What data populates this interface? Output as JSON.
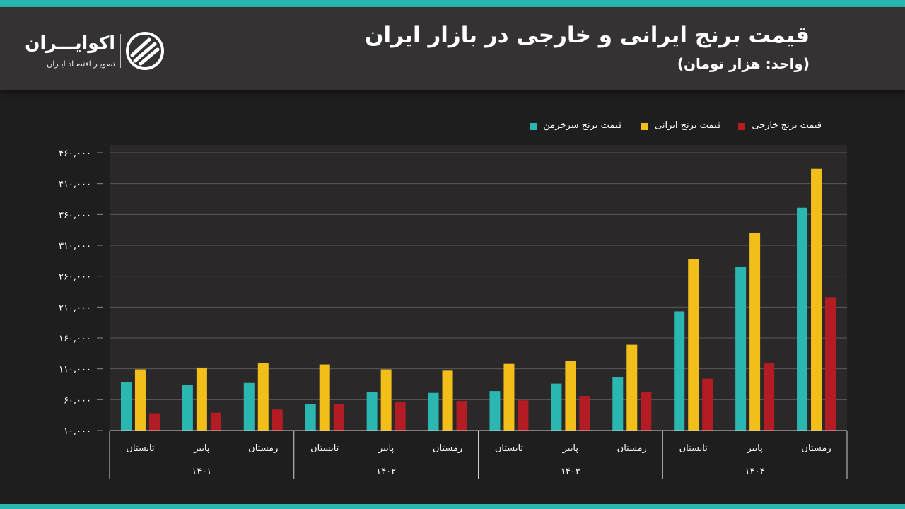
{
  "header": {
    "title": "قیمت برنج ایرانی و خارجی در بازار ایران",
    "subtitle": "(واحد: هزار تومان)"
  },
  "logo": {
    "name": "اکوایـــران",
    "tagline": "تصویـر اقتصـاد ایـران"
  },
  "colors": {
    "accent": "#2ab7b1",
    "sarkhorman": "#2ab7b1",
    "irani": "#f2bf1a",
    "khareji": "#b41c24"
  },
  "legend": [
    {
      "label": "قیمت برنج خارجی",
      "color": "#b41c24"
    },
    {
      "label": "قیمت برنج ایرانی",
      "color": "#f2bf1a"
    },
    {
      "label": "قیمت برنج سرخرمن",
      "color": "#2ab7b1"
    }
  ],
  "chart_data": {
    "type": "bar",
    "ylim": [
      10000,
      460000
    ],
    "yticks": [
      10000,
      60000,
      110000,
      160000,
      210000,
      260000,
      310000,
      360000,
      410000,
      460000
    ],
    "ytick_labels": [
      "۱۰,۰۰۰",
      "۶۰,۰۰۰",
      "۱۱۰,۰۰۰",
      "۱۶۰,۰۰۰",
      "۲۱۰,۰۰۰",
      "۲۶۰,۰۰۰",
      "۳۱۰,۰۰۰",
      "۳۶۰,۰۰۰",
      "۴۱۰,۰۰۰",
      "۴۶۰,۰۰۰"
    ],
    "grid": true,
    "groups": [
      "۱۴۰۱",
      "۱۴۰۲",
      "۱۴۰۳",
      "۱۴۰۴"
    ],
    "seasons": [
      "تابستان",
      "پاییز",
      "زمستان"
    ],
    "categories": [
      "تابستان ۱۴۰۱",
      "پاییز ۱۴۰۱",
      "زمستان ۱۴۰۱",
      "تابستان ۱۴۰۲",
      "پاییز ۱۴۰۲",
      "زمستان ۱۴۰۲",
      "تابستان ۱۴۰۳",
      "پاییز ۱۴۰۳",
      "زمستان ۱۴۰۳",
      "تابستان ۱۴۰۴",
      "پاییز ۱۴۰۴",
      "زمستان ۱۴۰۴"
    ],
    "series": [
      {
        "name": "قیمت برنج سرخرمن",
        "color": "#2ab7b1",
        "values": [
          88000,
          84000,
          87000,
          53000,
          73000,
          71000,
          74000,
          86000,
          97000,
          203000,
          275000,
          371000
        ]
      },
      {
        "name": "قیمت برنج ایرانی",
        "color": "#f2bf1a",
        "values": [
          109000,
          112000,
          119000,
          117000,
          109000,
          107000,
          118000,
          123000,
          149000,
          288000,
          330000,
          434000
        ]
      },
      {
        "name": "قیمت برنج خارجی",
        "color": "#b41c24",
        "values": [
          38000,
          39000,
          44000,
          53000,
          57000,
          58000,
          59000,
          66000,
          73000,
          94000,
          119000,
          226000
        ]
      }
    ]
  }
}
